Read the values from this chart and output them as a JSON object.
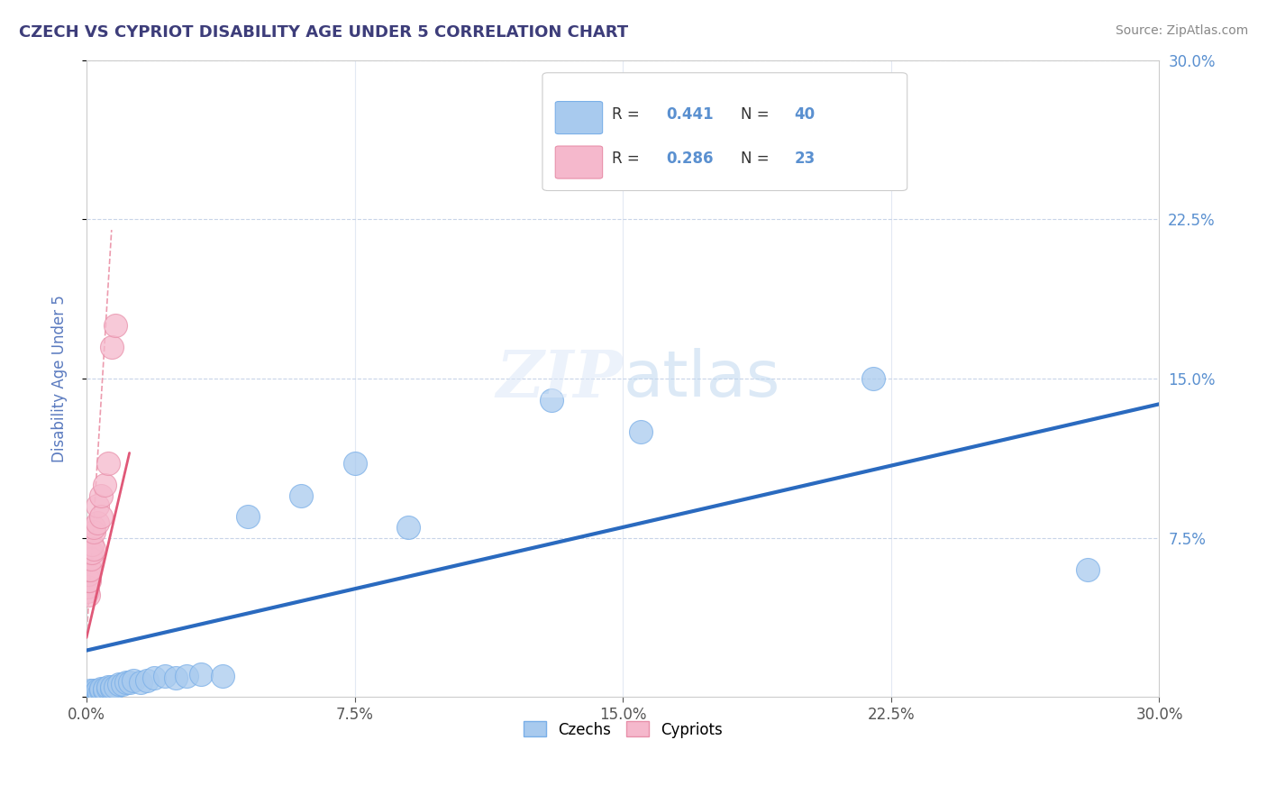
{
  "title": "CZECH VS CYPRIOT DISABILITY AGE UNDER 5 CORRELATION CHART",
  "source_text": "Source: ZipAtlas.com",
  "ylabel": "Disability Age Under 5",
  "xlim": [
    0.0,
    0.3
  ],
  "ylim": [
    0.0,
    0.3
  ],
  "xtick_vals": [
    0.0,
    0.075,
    0.15,
    0.225,
    0.3
  ],
  "xtick_labels": [
    "0.0%",
    "7.5%",
    "15.0%",
    "22.5%",
    "30.0%"
  ],
  "ytick_vals_right": [
    0.075,
    0.15,
    0.225,
    0.3
  ],
  "ytick_labels_right": [
    "7.5%",
    "15.0%",
    "22.5%",
    "30.0%"
  ],
  "czechs_color": "#a8caee",
  "czechs_edge_color": "#7aafe8",
  "cypriots_color": "#f5b8cc",
  "cypriots_edge_color": "#e890aa",
  "czechs_R": 0.441,
  "czechs_N": 40,
  "cypriots_R": 0.286,
  "cypriots_N": 23,
  "legend_label_czechs": "Czechs",
  "legend_label_cypriots": "Cypriots",
  "title_color": "#3d3d7a",
  "source_color": "#888888",
  "axis_label_color": "#5a7abf",
  "right_tick_color": "#5a90d0",
  "regression_czech_color": "#2a6abf",
  "regression_cypriot_color": "#e05878",
  "grid_color": "#c8d4e8",
  "czech_line_start_x": 0.0,
  "czech_line_start_y": 0.022,
  "czech_line_end_x": 0.3,
  "czech_line_end_y": 0.138,
  "cypriot_line_start_x": 0.0,
  "cypriot_line_start_y": 0.028,
  "cypriot_line_end_x": 0.012,
  "cypriot_line_end_y": 0.115,
  "czechs_x": [
    0.0005,
    0.001,
    0.001,
    0.0015,
    0.002,
    0.002,
    0.0025,
    0.003,
    0.003,
    0.0035,
    0.004,
    0.004,
    0.005,
    0.005,
    0.006,
    0.006,
    0.007,
    0.007,
    0.008,
    0.009,
    0.01,
    0.011,
    0.012,
    0.013,
    0.015,
    0.017,
    0.019,
    0.022,
    0.025,
    0.028,
    0.032,
    0.038,
    0.045,
    0.06,
    0.075,
    0.09,
    0.13,
    0.155,
    0.22,
    0.28
  ],
  "czechs_y": [
    0.001,
    0.002,
    0.003,
    0.002,
    0.001,
    0.003,
    0.002,
    0.002,
    0.003,
    0.002,
    0.003,
    0.004,
    0.003,
    0.004,
    0.004,
    0.005,
    0.004,
    0.005,
    0.005,
    0.006,
    0.006,
    0.007,
    0.007,
    0.008,
    0.007,
    0.008,
    0.009,
    0.01,
    0.009,
    0.01,
    0.011,
    0.01,
    0.085,
    0.095,
    0.11,
    0.08,
    0.14,
    0.125,
    0.15,
    0.06
  ],
  "cypriots_x": [
    0.0002,
    0.0003,
    0.0004,
    0.0005,
    0.0006,
    0.0007,
    0.0008,
    0.001,
    0.001,
    0.0012,
    0.0015,
    0.0015,
    0.002,
    0.002,
    0.002,
    0.003,
    0.003,
    0.004,
    0.004,
    0.005,
    0.006,
    0.007,
    0.008
  ],
  "cypriots_y": [
    0.05,
    0.052,
    0.048,
    0.055,
    0.058,
    0.055,
    0.06,
    0.06,
    0.068,
    0.065,
    0.068,
    0.072,
    0.07,
    0.078,
    0.08,
    0.082,
    0.09,
    0.085,
    0.095,
    0.1,
    0.11,
    0.165,
    0.175
  ]
}
